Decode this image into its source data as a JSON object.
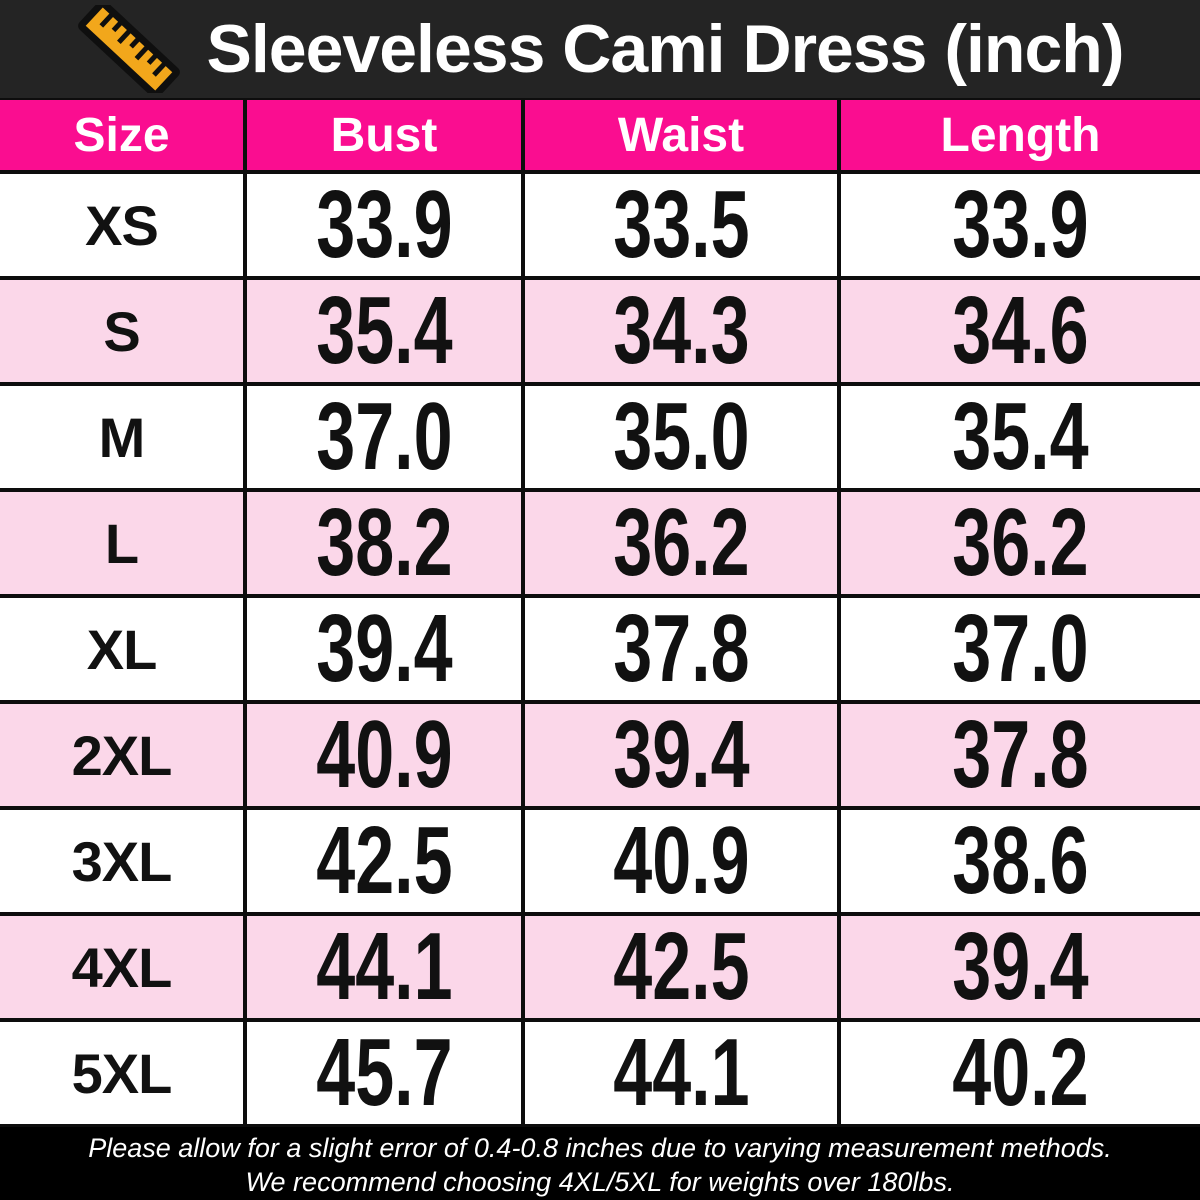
{
  "title": "Sleeveless Cami Dress (inch)",
  "colors": {
    "title_bar_bg": "#242424",
    "table_header_bg": "#fa0d90",
    "row_alt_bg": "#fbd7e9",
    "row_bg": "#ffffff",
    "border": "#0d0d0d",
    "ruler_icon": "#f2a71b",
    "footer_bg": "#000000",
    "text_light": "#ffffff",
    "text_dark": "#111111"
  },
  "table": {
    "columns": [
      "Size",
      "Bust",
      "Waist",
      "Length"
    ],
    "rows": [
      {
        "size": "XS",
        "bust": "33.9",
        "waist": "33.5",
        "length": "33.9"
      },
      {
        "size": "S",
        "bust": "35.4",
        "waist": "34.3",
        "length": "34.6"
      },
      {
        "size": "M",
        "bust": "37.0",
        "waist": "35.0",
        "length": "35.4"
      },
      {
        "size": "L",
        "bust": "38.2",
        "waist": "36.2",
        "length": "36.2"
      },
      {
        "size": "XL",
        "bust": "39.4",
        "waist": "37.8",
        "length": "37.0"
      },
      {
        "size": "2XL",
        "bust": "40.9",
        "waist": "39.4",
        "length": "37.8"
      },
      {
        "size": "3XL",
        "bust": "42.5",
        "waist": "40.9",
        "length": "38.6"
      },
      {
        "size": "4XL",
        "bust": "44.1",
        "waist": "42.5",
        "length": "39.4"
      },
      {
        "size": "5XL",
        "bust": "45.7",
        "waist": "44.1",
        "length": "40.2"
      }
    ]
  },
  "footer": {
    "line1": "Please allow for a slight error of 0.4-0.8 inches due to varying measurement methods.",
    "line2": "We recommend choosing 4XL/5XL for weights over 180lbs."
  },
  "chart_data": {
    "type": "table",
    "title": "Sleeveless Cami Dress (inch)",
    "columns": [
      "Size",
      "Bust",
      "Waist",
      "Length"
    ],
    "rows": [
      [
        "XS",
        33.9,
        33.5,
        33.9
      ],
      [
        "S",
        35.4,
        34.3,
        34.6
      ],
      [
        "M",
        37.0,
        35.0,
        35.4
      ],
      [
        "L",
        38.2,
        36.2,
        36.2
      ],
      [
        "XL",
        39.4,
        37.8,
        37.0
      ],
      [
        "2XL",
        40.9,
        39.4,
        37.8
      ],
      [
        "3XL",
        42.5,
        40.9,
        38.6
      ],
      [
        "4XL",
        44.1,
        42.5,
        39.4
      ],
      [
        "5XL",
        45.7,
        44.1,
        40.2
      ]
    ],
    "units": "inches",
    "notes": [
      "Please allow for a slight error of 0.4-0.8 inches due to varying measurement methods.",
      "We recommend choosing 4XL/5XL for weights over 180lbs."
    ]
  }
}
